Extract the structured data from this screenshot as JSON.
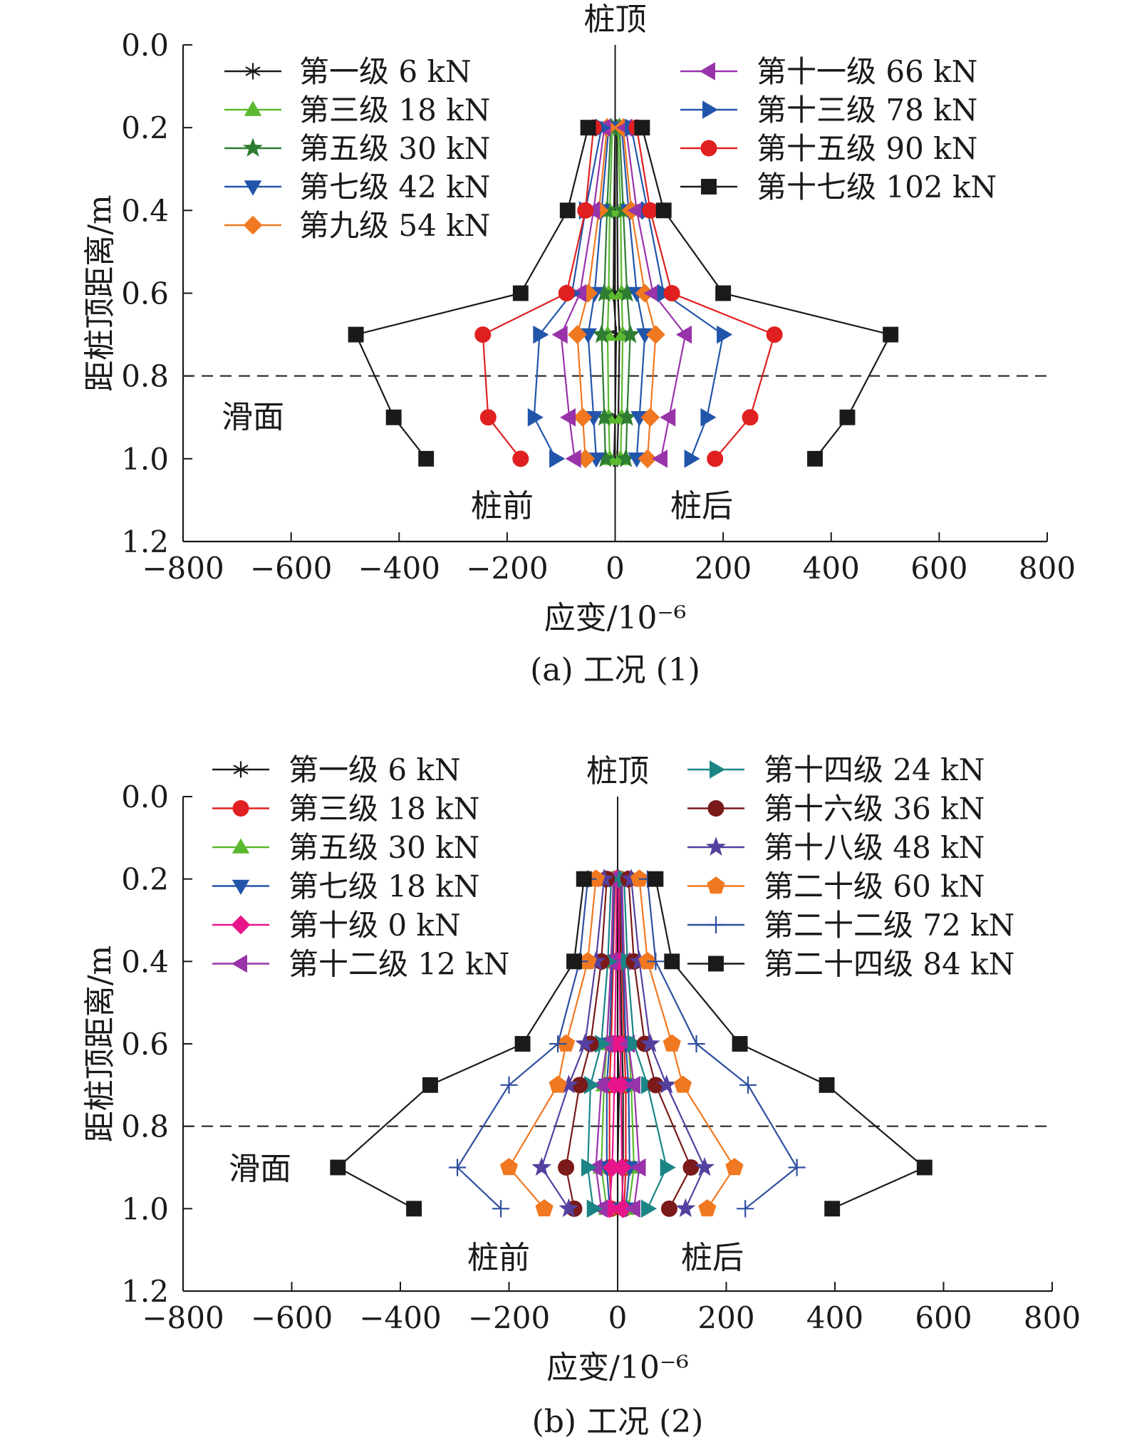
{
  "charts": [
    {
      "caption": "(a) 工况 (1)",
      "top_label": "桩顶",
      "left_label": "桩前",
      "right_label": "桩后",
      "slip_label": "滑面",
      "legend": {
        "left": [
          "第一级 6 kN",
          "第三级 18 kN",
          "第五级 30 kN",
          "第七级 42 kN",
          "第九级 54 kN"
        ],
        "right": [
          "第十一级 66 kN",
          "第十三级 78 kN",
          "第十五级 90 kN",
          "第十七级 102 kN"
        ]
      }
    },
    {
      "caption": "(b) 工况 (2)",
      "top_label": "桩顶",
      "left_label": "桩前",
      "right_label": "桩后",
      "slip_label": "滑面",
      "legend": {
        "left": [
          "第一级 6 kN",
          "第三级 18 kN",
          "第五级 30 kN",
          "第七级 18 kN",
          "第十级 0 kN",
          "第十二级 12 kN"
        ],
        "right": [
          "第十四级 24 kN",
          "第十六级 36 kN",
          "第十八级 48 kN",
          "第二十级 60 kN",
          "第二十二级 72 kN",
          "第二十四级 84 kN"
        ]
      }
    }
  ],
  "chart_data": [
    {
      "type": "line",
      "xlabel": "应变/10⁻⁶",
      "ylabel": "距桩顶距离/m",
      "xlim": [
        -800,
        800
      ],
      "ylim": [
        1.2,
        0.0
      ],
      "xticks": [
        -800,
        -600,
        -400,
        -200,
        0,
        200,
        400,
        600,
        800
      ],
      "yticks": [
        0.0,
        0.2,
        0.4,
        0.6,
        0.8,
        1.0,
        1.2
      ],
      "depths": [
        0.2,
        0.4,
        0.6,
        0.7,
        0.9,
        1.0
      ],
      "slip_surface_depth": 0.8,
      "series": [
        {
          "name": "第一级 6 kN",
          "color": "#1a1a1a",
          "marker": "asterisk",
          "front": [
            0,
            -2,
            -3,
            2,
            0,
            -2
          ],
          "back": [
            3,
            4,
            5,
            8,
            6,
            4
          ]
        },
        {
          "name": "第三级 18 kN",
          "color": "#5ab92f",
          "marker": "triangle-up",
          "front": [
            -5,
            -10,
            -12,
            -14,
            -12,
            -10
          ],
          "back": [
            5,
            10,
            12,
            14,
            12,
            10
          ]
        },
        {
          "name": "第五级 30 kN",
          "color": "#2e7d32",
          "marker": "star",
          "front": [
            -8,
            -15,
            -20,
            -25,
            -20,
            -18
          ],
          "back": [
            8,
            15,
            22,
            28,
            22,
            20
          ]
        },
        {
          "name": "第七级 42 kN",
          "color": "#2255aa",
          "marker": "triangle-down",
          "front": [
            -12,
            -25,
            -38,
            -50,
            -40,
            -35
          ],
          "back": [
            12,
            25,
            40,
            55,
            45,
            40
          ]
        },
        {
          "name": "第九级 54 kN",
          "color": "#f07820",
          "marker": "diamond",
          "front": [
            -15,
            -30,
            -50,
            -70,
            -60,
            -55
          ],
          "back": [
            15,
            30,
            55,
            75,
            65,
            60
          ]
        },
        {
          "name": "第十一级 66 kN",
          "color": "#9933aa",
          "marker": "triangle-left",
          "front": [
            -20,
            -40,
            -65,
            -100,
            -85,
            -75
          ],
          "back": [
            20,
            40,
            70,
            130,
            100,
            85
          ]
        },
        {
          "name": "第十三级 78 kN",
          "color": "#2255aa",
          "marker": "triangle-right",
          "front": [
            -25,
            -55,
            -80,
            -140,
            -150,
            -110
          ],
          "back": [
            30,
            60,
            90,
            200,
            170,
            140
          ]
        },
        {
          "name": "第十五级 90 kN",
          "color": "#e02020",
          "marker": "circle",
          "front": [
            -40,
            -55,
            -90,
            -245,
            -235,
            -175
          ],
          "back": [
            40,
            65,
            105,
            295,
            250,
            185
          ]
        },
        {
          "name": "第十七级 102 kN",
          "color": "#1a1a1a",
          "marker": "square",
          "front": [
            -50,
            -88,
            -175,
            -480,
            -410,
            -350
          ],
          "back": [
            50,
            90,
            200,
            510,
            430,
            370
          ]
        }
      ]
    },
    {
      "type": "line",
      "xlabel": "应变/10⁻⁶",
      "ylabel": "距桩顶距离/m",
      "xlim": [
        -800,
        800
      ],
      "ylim": [
        1.2,
        0.0
      ],
      "xticks": [
        -800,
        -600,
        -400,
        -200,
        0,
        200,
        400,
        600,
        800
      ],
      "yticks": [
        0.0,
        0.2,
        0.4,
        0.6,
        0.8,
        1.0,
        1.2
      ],
      "depths": [
        0.2,
        0.4,
        0.6,
        0.7,
        0.9,
        1.0
      ],
      "slip_surface_depth": 0.8,
      "series": [
        {
          "name": "第一级 6 kN",
          "color": "#1a1a1a",
          "marker": "asterisk",
          "front": [
            0,
            0,
            0,
            3,
            0,
            0
          ],
          "back": [
            5,
            5,
            8,
            10,
            10,
            8
          ]
        },
        {
          "name": "第三级 18 kN",
          "color": "#e02020",
          "marker": "circle",
          "front": [
            -5,
            -8,
            -12,
            -15,
            -15,
            -12
          ],
          "back": [
            5,
            8,
            12,
            15,
            15,
            12
          ]
        },
        {
          "name": "第五级 30 kN",
          "color": "#5ab92f",
          "marker": "triangle-up",
          "front": [
            -8,
            -12,
            -20,
            -25,
            -30,
            -20
          ],
          "back": [
            8,
            12,
            20,
            25,
            30,
            20
          ]
        },
        {
          "name": "第七级 18 kN",
          "color": "#2255aa",
          "marker": "triangle-down",
          "front": [
            -6,
            -10,
            -15,
            -20,
            -20,
            -15
          ],
          "back": [
            6,
            10,
            15,
            20,
            22,
            15
          ]
        },
        {
          "name": "第十级 0 kN",
          "color": "#e8158a",
          "marker": "diamond",
          "front": [
            -2,
            -3,
            -5,
            -6,
            -10,
            -15
          ],
          "back": [
            2,
            3,
            5,
            6,
            8,
            10
          ]
        },
        {
          "name": "第十二级 12 kN",
          "color": "#9933aa",
          "marker": "triangle-left",
          "front": [
            -8,
            -12,
            -20,
            -30,
            -40,
            -30
          ],
          "back": [
            8,
            12,
            20,
            30,
            40,
            30
          ]
        },
        {
          "name": "第十四级 24 kN",
          "color": "#1b8585",
          "marker": "triangle-right",
          "front": [
            -12,
            -18,
            -30,
            -50,
            -55,
            -45
          ],
          "back": [
            12,
            18,
            30,
            55,
            90,
            55
          ]
        },
        {
          "name": "第十六级 36 kN",
          "color": "#7a1a1a",
          "marker": "circle",
          "front": [
            -20,
            -30,
            -50,
            -70,
            -95,
            -80
          ],
          "back": [
            20,
            30,
            50,
            70,
            135,
            95
          ]
        },
        {
          "name": "第十八级 48 kN",
          "color": "#5540a0",
          "marker": "star",
          "front": [
            -25,
            -40,
            -60,
            -90,
            -140,
            -90
          ],
          "back": [
            25,
            40,
            60,
            90,
            160,
            125
          ]
        },
        {
          "name": "第二十级 60 kN",
          "color": "#f07820",
          "marker": "pentagon",
          "front": [
            -40,
            -55,
            -95,
            -110,
            -200,
            -135
          ],
          "back": [
            40,
            55,
            100,
            120,
            215,
            165
          ]
        },
        {
          "name": "第二十二级 72 kN",
          "color": "#2e4fa0",
          "marker": "plus",
          "front": [
            -55,
            -70,
            -110,
            -200,
            -295,
            -215
          ],
          "back": [
            55,
            70,
            145,
            240,
            330,
            235
          ]
        },
        {
          "name": "第二十四级 84 kN",
          "color": "#1a1a1a",
          "marker": "square",
          "front": [
            -62,
            -80,
            -175,
            -345,
            -515,
            -375
          ],
          "back": [
            70,
            100,
            225,
            385,
            565,
            395
          ]
        }
      ]
    }
  ]
}
